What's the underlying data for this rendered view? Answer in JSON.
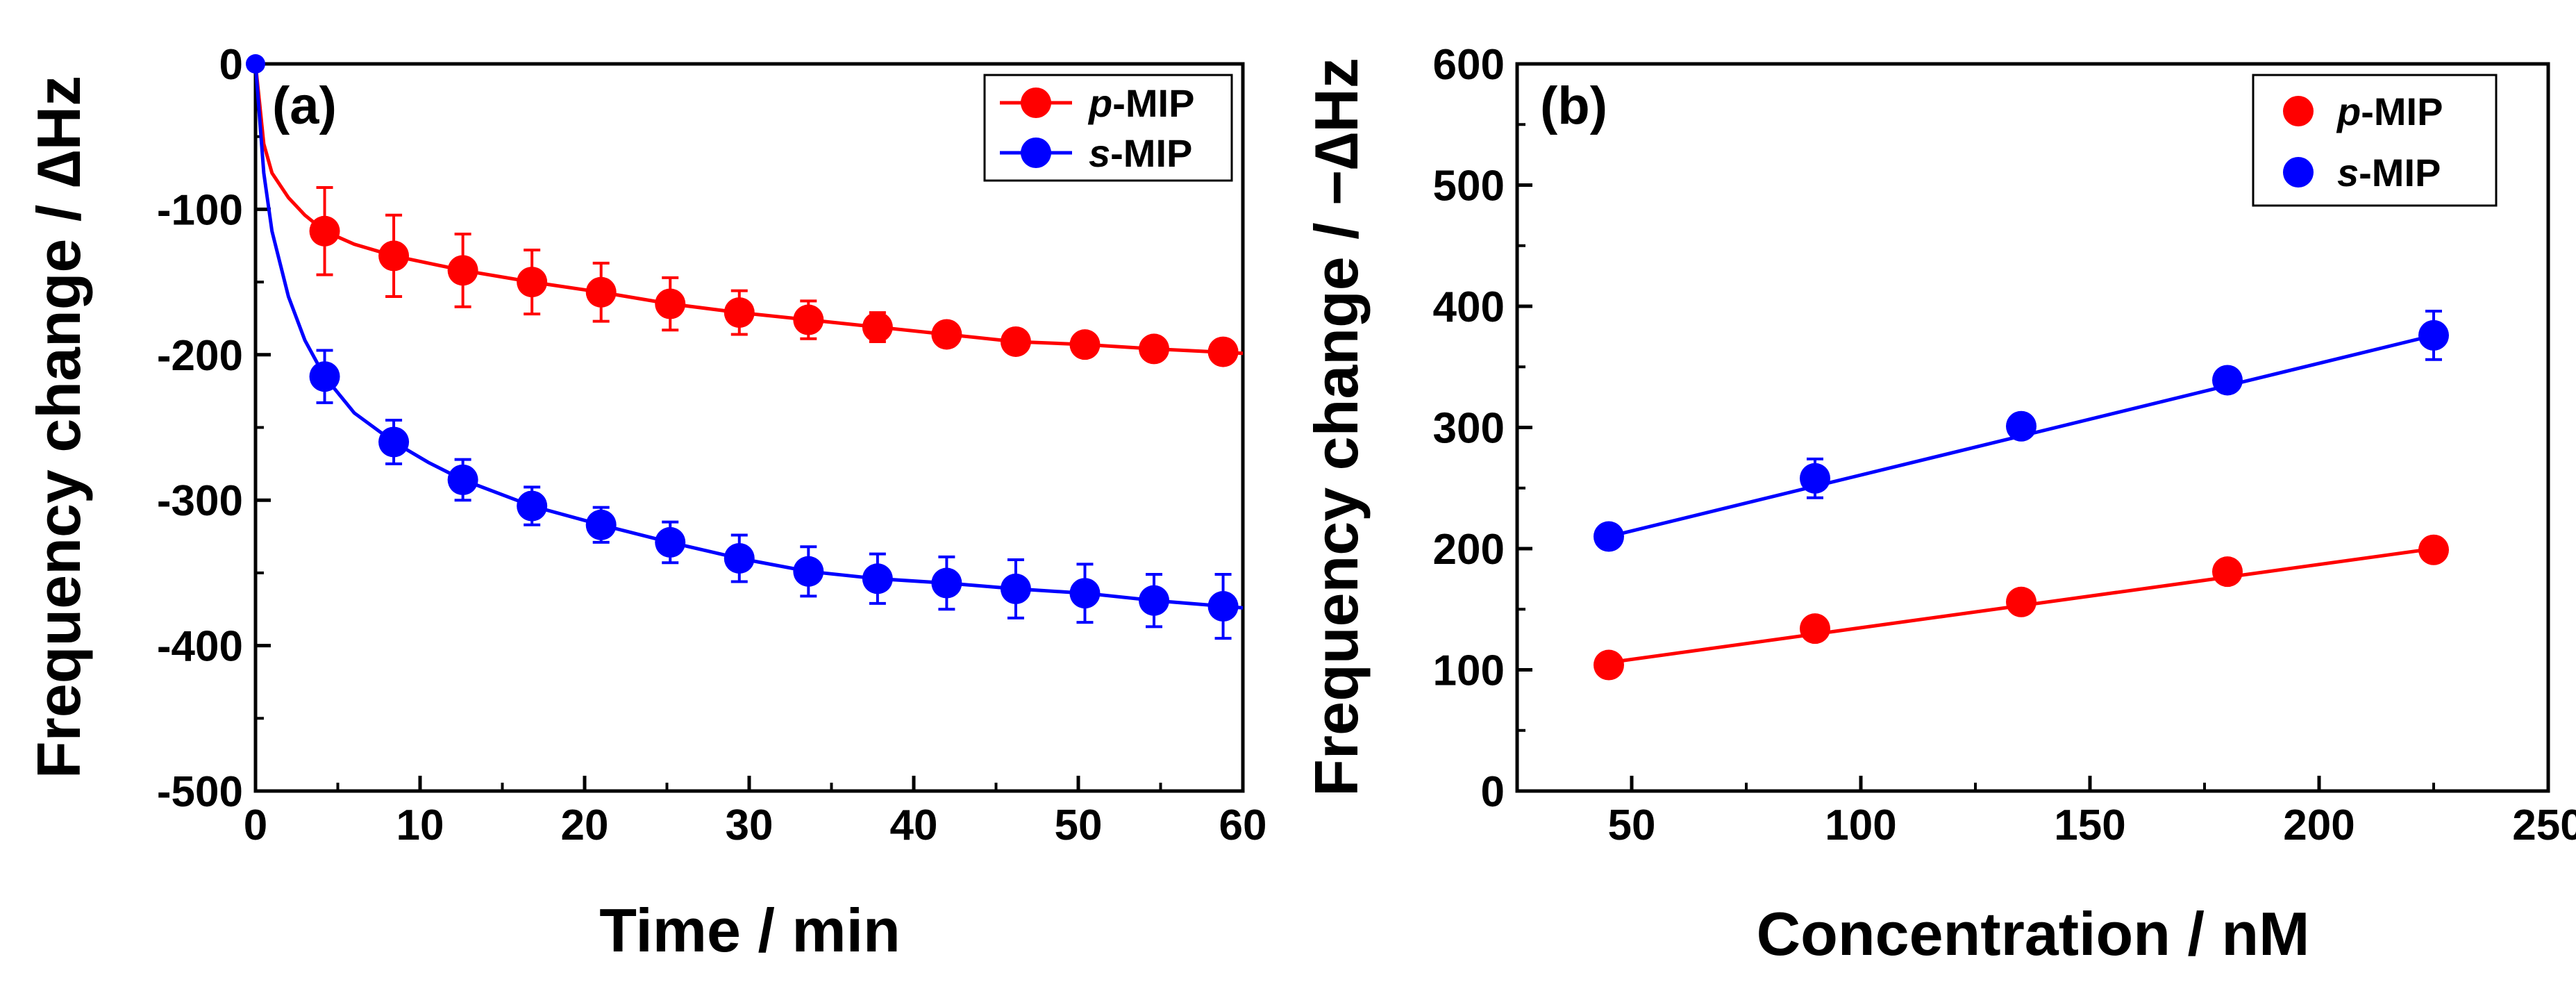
{
  "chart_data": [
    {
      "type": "line",
      "panel_label": "(a)",
      "xlabel": "Time / min",
      "ylabel": "Frequency change / ∆Hz",
      "xlim": [
        0,
        60
      ],
      "ylim": [
        -500,
        0
      ],
      "x_ticks": [
        "0",
        "10",
        "20",
        "30",
        "40",
        "50",
        "60"
      ],
      "y_ticks": [
        "0",
        "-100",
        "-200",
        "-300",
        "-400",
        "-500"
      ],
      "legend": {
        "position": "top-right",
        "entries": [
          {
            "prefix": "p",
            "suffix": "-MIP"
          },
          {
            "prefix": "s",
            "suffix": "-MIP"
          }
        ]
      },
      "series": [
        {
          "name": "p-MIP",
          "color": "#ff0000",
          "x": [
            4.2,
            8.4,
            12.6,
            16.8,
            21.0,
            25.2,
            29.4,
            33.6,
            37.8,
            42.0,
            46.2,
            50.4,
            54.6,
            58.8
          ],
          "y": [
            -115,
            -132,
            -142,
            -150,
            -157,
            -165,
            -171,
            -176,
            -181,
            -186,
            -191,
            -193,
            -196,
            -198
          ],
          "err": [
            30,
            28,
            25,
            22,
            20,
            18,
            15,
            13,
            10,
            8,
            7,
            6,
            6,
            6
          ],
          "curve_x": [
            0,
            0.5,
            1,
            2,
            3,
            4.2,
            6,
            8.4,
            10.5,
            12.6,
            16.8,
            21,
            25.2,
            29.4,
            33.6,
            37.8,
            42,
            46.2,
            50.4,
            54.6,
            60
          ],
          "curve_y": [
            0,
            -55,
            -75,
            -92,
            -104,
            -115,
            -124,
            -132,
            -137,
            -142,
            -150,
            -157,
            -165,
            -171,
            -176,
            -181,
            -186,
            -191,
            -193,
            -196,
            -199
          ]
        },
        {
          "name": "s-MIP",
          "color": "#0000ff",
          "x": [
            4.2,
            8.4,
            12.6,
            16.8,
            21.0,
            25.2,
            29.4,
            33.6,
            37.8,
            42.0,
            46.2,
            50.4,
            54.6,
            58.8
          ],
          "y": [
            -215,
            -260,
            -286,
            -304,
            -317,
            -329,
            -340,
            -349,
            -354,
            -357,
            -361,
            -364,
            -369,
            -373
          ],
          "err": [
            18,
            15,
            14,
            13,
            12,
            14,
            16,
            17,
            17,
            18,
            20,
            20,
            18,
            22
          ],
          "curve_x": [
            0,
            0.5,
            1,
            2,
            3,
            4.2,
            6,
            8.4,
            10.5,
            12.6,
            16.8,
            21,
            25.2,
            29.4,
            33.6,
            37.8,
            42,
            46.2,
            50.4,
            54.6,
            60
          ],
          "curve_y": [
            0,
            -75,
            -115,
            -160,
            -190,
            -215,
            -240,
            -260,
            -274,
            -286,
            -304,
            -317,
            -329,
            -340,
            -349,
            -354,
            -357,
            -361,
            -364,
            -369,
            -374
          ]
        }
      ],
      "origin_point": {
        "x": 0,
        "y": 0,
        "color": "#0000ff"
      }
    },
    {
      "type": "scatter",
      "panel_label": "(b)",
      "xlabel": "Concentration / nM",
      "ylabel": "Frequency change / −∆Hz",
      "xlim": [
        25,
        250
      ],
      "ylim": [
        0,
        600
      ],
      "x_ticks": [
        "50",
        "100",
        "150",
        "200",
        "250"
      ],
      "y_ticks": [
        "0",
        "100",
        "200",
        "300",
        "400",
        "500",
        "600"
      ],
      "legend": {
        "position": "top-right",
        "entries": [
          {
            "prefix": "p",
            "suffix": "-MIP"
          },
          {
            "prefix": "s",
            "suffix": "-MIP"
          }
        ]
      },
      "series": [
        {
          "name": "p-MIP",
          "color": "#ff0000",
          "x": [
            45,
            90,
            135,
            180,
            225
          ],
          "y": [
            104,
            134,
            156,
            181,
            199
          ],
          "err": [
            3,
            6,
            5,
            5,
            6
          ],
          "fit": [
            45,
            106,
            225,
            200
          ]
        },
        {
          "name": "s-MIP",
          "color": "#0000ff",
          "x": [
            45,
            90,
            135,
            180,
            225
          ],
          "y": [
            210,
            258,
            301,
            339,
            376
          ],
          "err": [
            3,
            16,
            7,
            6,
            20
          ],
          "fit": [
            45,
            210,
            225,
            376
          ]
        }
      ]
    }
  ]
}
